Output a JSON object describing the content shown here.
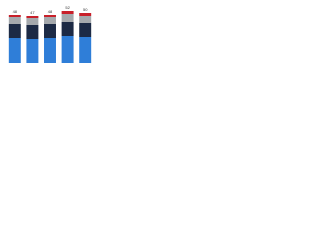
{
  "chart_data": {
    "type": "stacked_bar",
    "categories": [
      null,
      null,
      null,
      null,
      null
    ],
    "series": [
      {
        "color": "#2f7ed8",
        "values": [
          25,
          24,
          25,
          27,
          26
        ]
      },
      {
        "color": "#1c2a45",
        "values": [
          14,
          14,
          14,
          14,
          14
        ]
      },
      {
        "color": "#a5a9ad",
        "values": [
          7,
          7,
          7,
          8,
          7
        ]
      },
      {
        "color": "#c8202a",
        "values": [
          2,
          2,
          2,
          3,
          3
        ]
      }
    ],
    "totals": [
      48,
      47,
      48,
      52,
      50
    ],
    "ylim": [
      0,
      60
    ]
  }
}
